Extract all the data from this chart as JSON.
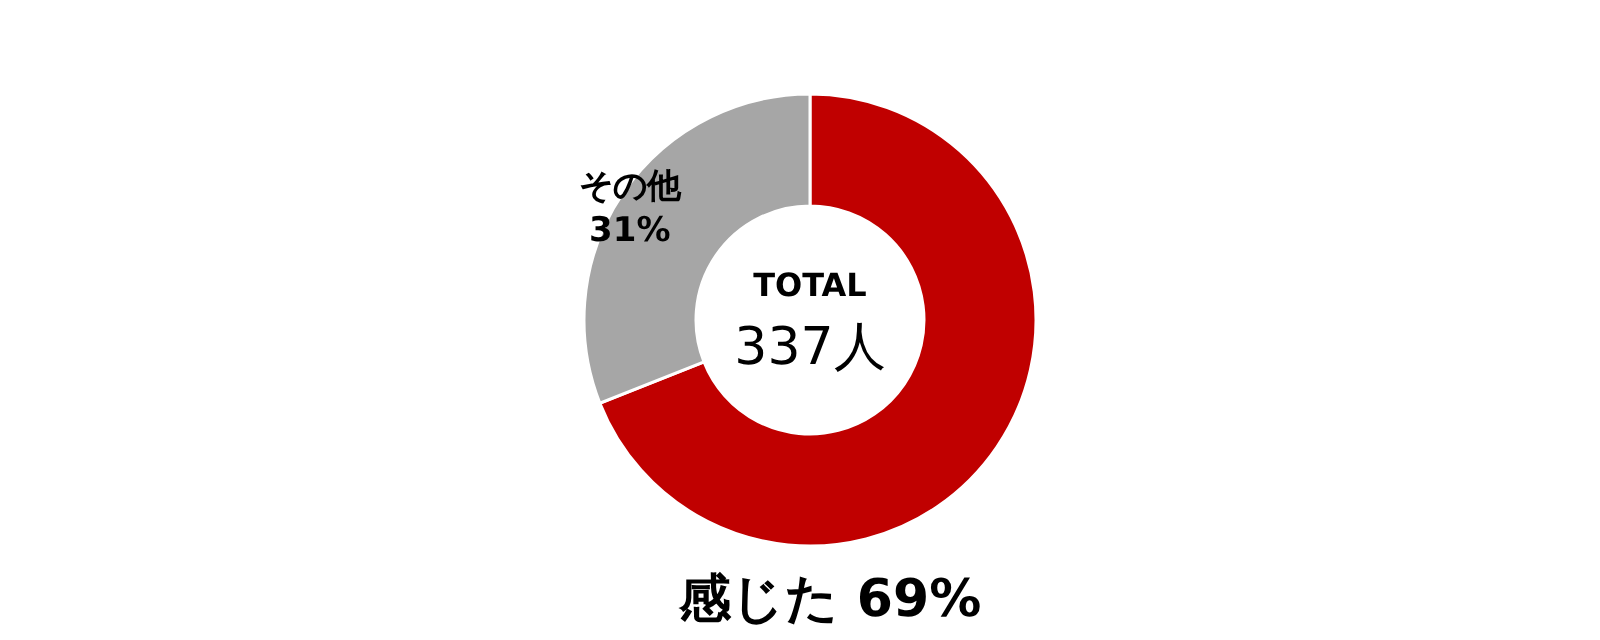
{
  "chart_data": {
    "type": "donut",
    "categories": [
      "感じた",
      "その他"
    ],
    "values": [
      69,
      31
    ],
    "colors": [
      "#c00000",
      "#a6a6a6"
    ],
    "value_labels": [
      "69%",
      "31%"
    ],
    "annotations": [
      "TOTAL",
      "337人"
    ]
  }
}
